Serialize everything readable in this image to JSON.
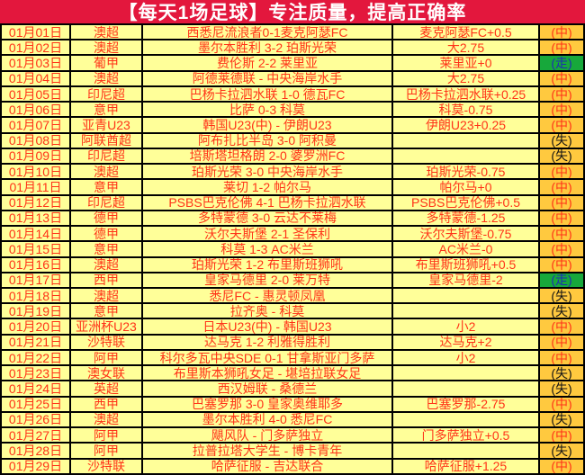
{
  "header": {
    "title": "【每天1场足球】专注质量，提高正确率"
  },
  "colors": {
    "banner_bg": "#e3173d",
    "banner_text": "#ffffff",
    "cell_bg": "#ffff99",
    "result_col_bg": "#ffc93f",
    "push_bg": "#17a83b",
    "push_text": "#1e2db4",
    "main_text_red": "#ff3318",
    "lose_text": "#141414",
    "grid_line": "#000000"
  },
  "legend": {
    "win_label": "(中)",
    "push_label": "(走)",
    "lose_label": "(失)"
  },
  "table": {
    "columns": [
      "date",
      "league",
      "match",
      "prediction",
      "result"
    ],
    "rows": [
      {
        "date": "01月01日",
        "league": "澳超",
        "match": "西悉尼流浪者0-1麦克阿瑟FC",
        "prediction": "麦克阿瑟FC+0.5",
        "result": "(中)",
        "outcome": "win"
      },
      {
        "date": "01月02日",
        "league": "澳超",
        "match": "墨尔本胜利 3-2 珀斯光荣",
        "prediction": "大2.75",
        "result": "(中)",
        "outcome": "win"
      },
      {
        "date": "01月03日",
        "league": "葡甲",
        "match": "费伦斯 2-2 莱里亚",
        "prediction": "莱里亚+0",
        "result": "(走)",
        "outcome": "push"
      },
      {
        "date": "01月04日",
        "league": "澳超",
        "match": "阿德莱德联 - 中央海岸水手",
        "prediction": "大2.75",
        "result": "(中)",
        "outcome": "win"
      },
      {
        "date": "01月05日",
        "league": "印尼超",
        "match": "巴杨卡拉泗水联 1-0 德瓦FC",
        "prediction": "巴杨卡拉泗水联+0.25",
        "result": "(中)",
        "outcome": "win"
      },
      {
        "date": "01月06日",
        "league": "意甲",
        "match": "比萨 0-3 科莫",
        "prediction": "科莫-0.75",
        "result": "(中)",
        "outcome": "win"
      },
      {
        "date": "01月07日",
        "league": "亚青U23",
        "match": "韩国U23(中) - 伊朗U23",
        "prediction": "伊朗U23+0.25",
        "result": "(中)",
        "outcome": "win"
      },
      {
        "date": "01月08日",
        "league": "阿联酋超",
        "match": "阿布扎比半岛 3-0 阿积曼",
        "prediction": "",
        "result": "(失)",
        "outcome": "lose"
      },
      {
        "date": "01月09日",
        "league": "印尼超",
        "match": "培斯塔坦格朗 2-0 婆罗洲FC",
        "prediction": "",
        "result": "(失)",
        "outcome": "lose"
      },
      {
        "date": "01月10日",
        "league": "澳超",
        "match": "珀斯光荣 3-0 中央海岸水手",
        "prediction": "珀斯光荣-0.75",
        "result": "(中)",
        "outcome": "win"
      },
      {
        "date": "01月11日",
        "league": "意甲",
        "match": "莱切 1-2 帕尔马",
        "prediction": "帕尔马+0",
        "result": "(中)",
        "outcome": "win"
      },
      {
        "date": "01月12日",
        "league": "印尼超",
        "match": "PSBS巴克伦佛 4-1 巴杨卡拉泗水联",
        "prediction": "PSBS巴克伦佛+0.5",
        "result": "(中)",
        "outcome": "win"
      },
      {
        "date": "01月13日",
        "league": "德甲",
        "match": "多特蒙德 3-0 云达不莱梅",
        "prediction": "多特蒙德-1.25",
        "result": "(中)",
        "outcome": "win"
      },
      {
        "date": "01月14日",
        "league": "德甲",
        "match": "沃尔夫斯堡 2-1 圣保利",
        "prediction": "沃尔夫斯堡-0.75",
        "result": "(中)",
        "outcome": "win"
      },
      {
        "date": "01月15日",
        "league": "意甲",
        "match": "科莫 1-3 AC米兰",
        "prediction": "AC米兰-0",
        "result": "(中)",
        "outcome": "win"
      },
      {
        "date": "01月16日",
        "league": "澳超",
        "match": "珀斯光荣 1-2 布里斯班狮吼",
        "prediction": "布里斯班狮吼+0.5",
        "result": "(中)",
        "outcome": "win"
      },
      {
        "date": "01月17日",
        "league": "西甲",
        "match": "皇家马德里 2-0 莱万特",
        "prediction": "皇家马德里-2",
        "result": "(走)",
        "outcome": "push"
      },
      {
        "date": "01月18日",
        "league": "澳超",
        "match": "悉尼FC - 惠灵顿凤凰",
        "prediction": "",
        "result": "(失)",
        "outcome": "lose"
      },
      {
        "date": "01月19日",
        "league": "意甲",
        "match": "拉齐奥 - 科莫",
        "prediction": "",
        "result": "(失)",
        "outcome": "lose"
      },
      {
        "date": "01月20日",
        "league": "亚洲杯U23",
        "match": "日本U23(中) - 韩国U23",
        "prediction": "小2",
        "result": "(中)",
        "outcome": "win"
      },
      {
        "date": "01月21日",
        "league": "沙特联",
        "match": "达马克 1-2 利雅得胜利",
        "prediction": "达马克+2",
        "result": "(中)",
        "outcome": "win"
      },
      {
        "date": "01月22日",
        "league": "阿甲",
        "match": "科尔多瓦中央SDE 0-1 甘拿斯亚门多萨",
        "prediction": "小2",
        "result": "(中)",
        "outcome": "win"
      },
      {
        "date": "01月23日",
        "league": "澳女联",
        "match": "布里斯本狮吼女足 - 堪培拉联女足",
        "prediction": "",
        "result": "(失)",
        "outcome": "lose"
      },
      {
        "date": "01月24日",
        "league": "英超",
        "match": "西汉姆联 - 桑德兰",
        "prediction": "",
        "result": "(失)",
        "outcome": "lose"
      },
      {
        "date": "01月25日",
        "league": "西甲",
        "match": "巴塞罗那 3-0 皇家奥维耶多",
        "prediction": "巴塞罗那-2.75",
        "result": "(中)",
        "outcome": "win"
      },
      {
        "date": "01月26日",
        "league": "澳超",
        "match": "墨尔本胜利 4-0 悉尼FC",
        "prediction": "",
        "result": "(失)",
        "outcome": "lose"
      },
      {
        "date": "01月27日",
        "league": "阿甲",
        "match": "飓风队 - 门多萨独立",
        "prediction": "门多萨独立+0.5",
        "result": "(中)",
        "outcome": "win"
      },
      {
        "date": "01月28日",
        "league": "阿甲",
        "match": "拉普拉塔大学生 - 博卡青年",
        "prediction": "",
        "result": "(失)",
        "outcome": "lose"
      },
      {
        "date": "01月29日",
        "league": "沙特联",
        "match": "哈萨征服 - 吉达联合",
        "prediction": "哈萨征服+1.25",
        "result": "(中)",
        "outcome": "win"
      }
    ]
  }
}
